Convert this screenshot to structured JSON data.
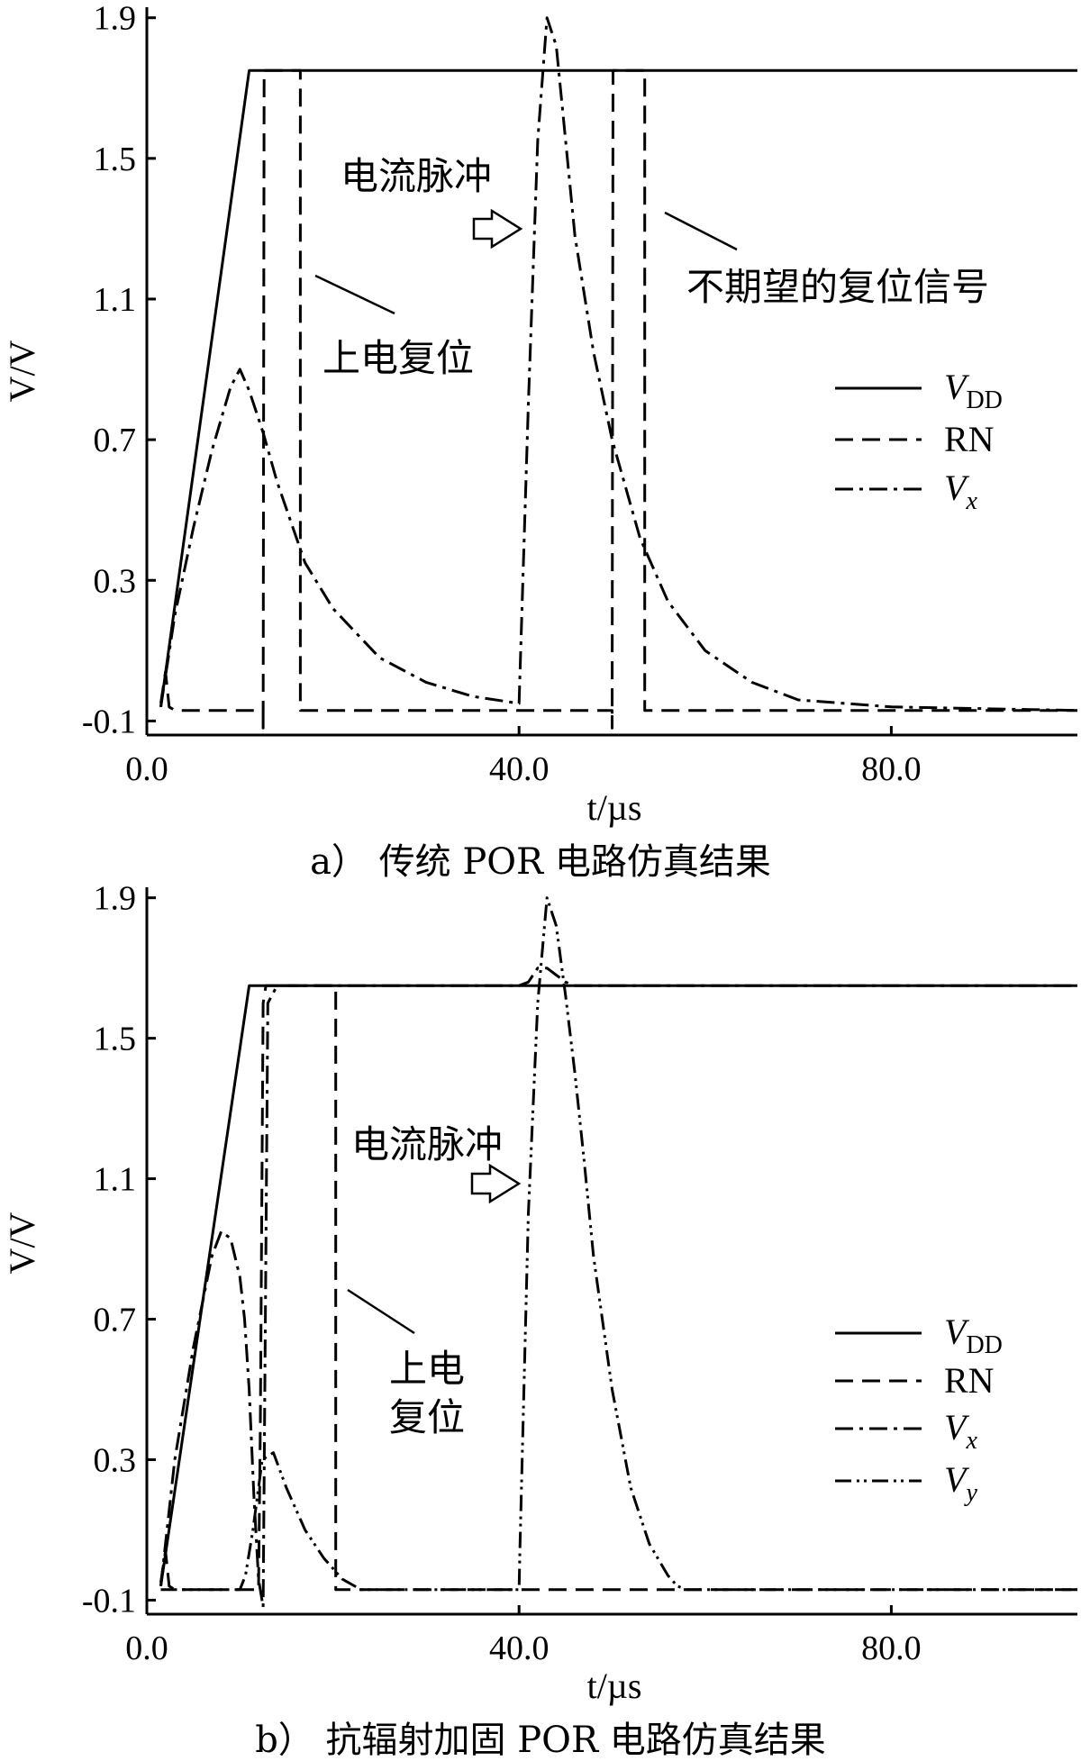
{
  "chart_data": [
    {
      "type": "line",
      "caption": "a） 传统 POR 电路仿真结果",
      "xlabel": "t/µs",
      "ylabel": "V/V",
      "xlim": [
        0,
        100
      ],
      "ylim": [
        -0.14,
        1.93
      ],
      "xticks": [
        "0.0",
        "40.0",
        "80.0"
      ],
      "yticks": [
        "-0.1",
        "0.3",
        "0.7",
        "1.1",
        "1.5",
        "1.9"
      ],
      "legend": [
        "VDD",
        "RN",
        "Vx"
      ],
      "series": [
        {
          "name": "VDD",
          "style": "solid",
          "x": [
            1.5,
            11,
            100
          ],
          "y": [
            -0.06,
            1.75,
            1.75
          ]
        },
        {
          "name": "RN",
          "style": "dashed",
          "x": [
            1.5,
            2,
            2.4,
            3,
            12.5,
            12.5,
            12.6,
            12.6,
            16.5,
            16.5,
            17,
            50,
            50,
            50.1,
            50.1,
            53.5,
            53.5,
            54,
            100
          ],
          "y": [
            -0.05,
            0.04,
            -0.06,
            -0.07,
            -0.07,
            -0.12,
            1.75,
            1.75,
            1.75,
            -0.07,
            -0.07,
            -0.07,
            -0.12,
            1.75,
            1.75,
            1.75,
            -0.07,
            -0.07,
            -0.07
          ]
        },
        {
          "name": "Vx",
          "style": "dashdot",
          "x": [
            1.5,
            3,
            5,
            7,
            9,
            10,
            11,
            12.5,
            14,
            17,
            20,
            25,
            30,
            35,
            40,
            41,
            42,
            43,
            44,
            45,
            46,
            48,
            50,
            53,
            56,
            60,
            65,
            70,
            80,
            100
          ],
          "y": [
            -0.06,
            0.2,
            0.45,
            0.67,
            0.85,
            0.9,
            0.84,
            0.72,
            0.58,
            0.35,
            0.22,
            0.08,
            0.01,
            -0.03,
            -0.05,
            0.8,
            1.55,
            1.9,
            1.82,
            1.55,
            1.28,
            0.95,
            0.7,
            0.42,
            0.24,
            0.1,
            0.01,
            -0.04,
            -0.06,
            -0.07
          ]
        }
      ],
      "annotations": [
        "电流脉冲",
        "上电复位",
        "不期望的复位信号"
      ]
    },
    {
      "type": "line",
      "caption": "b） 抗辐射加固 POR 电路仿真结果",
      "xlabel": "t/µs",
      "ylabel": "V/V",
      "xlim": [
        0,
        100
      ],
      "ylim": [
        -0.14,
        1.93
      ],
      "xticks": [
        "0.0",
        "40.0",
        "80.0"
      ],
      "yticks": [
        "-0.1",
        "0.3",
        "0.7",
        "1.1",
        "1.5",
        "1.9"
      ],
      "legend": [
        "VDD",
        "RN",
        "Vx",
        "Vy"
      ],
      "series": [
        {
          "name": "VDD",
          "style": "solid",
          "x": [
            1.5,
            11,
            100
          ],
          "y": [
            -0.06,
            1.65,
            1.65
          ]
        },
        {
          "name": "RN",
          "style": "dashed",
          "x": [
            1.5,
            2,
            2.4,
            3,
            12,
            12.2,
            12.5,
            12.8,
            20.3,
            20.3,
            21,
            100
          ],
          "y": [
            -0.05,
            0.04,
            -0.06,
            -0.07,
            -0.07,
            0.4,
            1.6,
            1.65,
            1.65,
            -0.07,
            -0.07,
            -0.07
          ]
        },
        {
          "name": "Vx",
          "style": "dashdot",
          "x": [
            1.5,
            3,
            5,
            7,
            8,
            9,
            10,
            10.5,
            11,
            11.5,
            12,
            12.5,
            13,
            14,
            40,
            41,
            42,
            43,
            44,
            45,
            46,
            47,
            100
          ],
          "y": [
            -0.06,
            0.3,
            0.62,
            0.88,
            0.95,
            0.93,
            0.82,
            0.7,
            0.5,
            0.2,
            -0.04,
            -0.12,
            1.6,
            1.65,
            1.65,
            1.66,
            1.7,
            1.7,
            1.68,
            1.66,
            1.65,
            1.65,
            1.65
          ]
        },
        {
          "name": "Vy",
          "style": "dashdotdot",
          "x": [
            1.5,
            10,
            10.6,
            11.4,
            12.4,
            13.6,
            15,
            17,
            19,
            21,
            23,
            40,
            40.1,
            41,
            42,
            43,
            44,
            45,
            46,
            47,
            48,
            50,
            52,
            54,
            56,
            57,
            58,
            100
          ],
          "y": [
            -0.07,
            -0.07,
            -0.03,
            0.1,
            0.3,
            0.32,
            0.22,
            0.1,
            0.02,
            -0.04,
            -0.07,
            -0.07,
            0.05,
            1.0,
            1.6,
            1.9,
            1.82,
            1.62,
            1.4,
            1.15,
            0.88,
            0.5,
            0.22,
            0.06,
            -0.03,
            -0.06,
            -0.07,
            -0.07
          ]
        }
      ],
      "annotations": [
        "电流脉冲",
        "上电",
        "复位"
      ]
    }
  ]
}
